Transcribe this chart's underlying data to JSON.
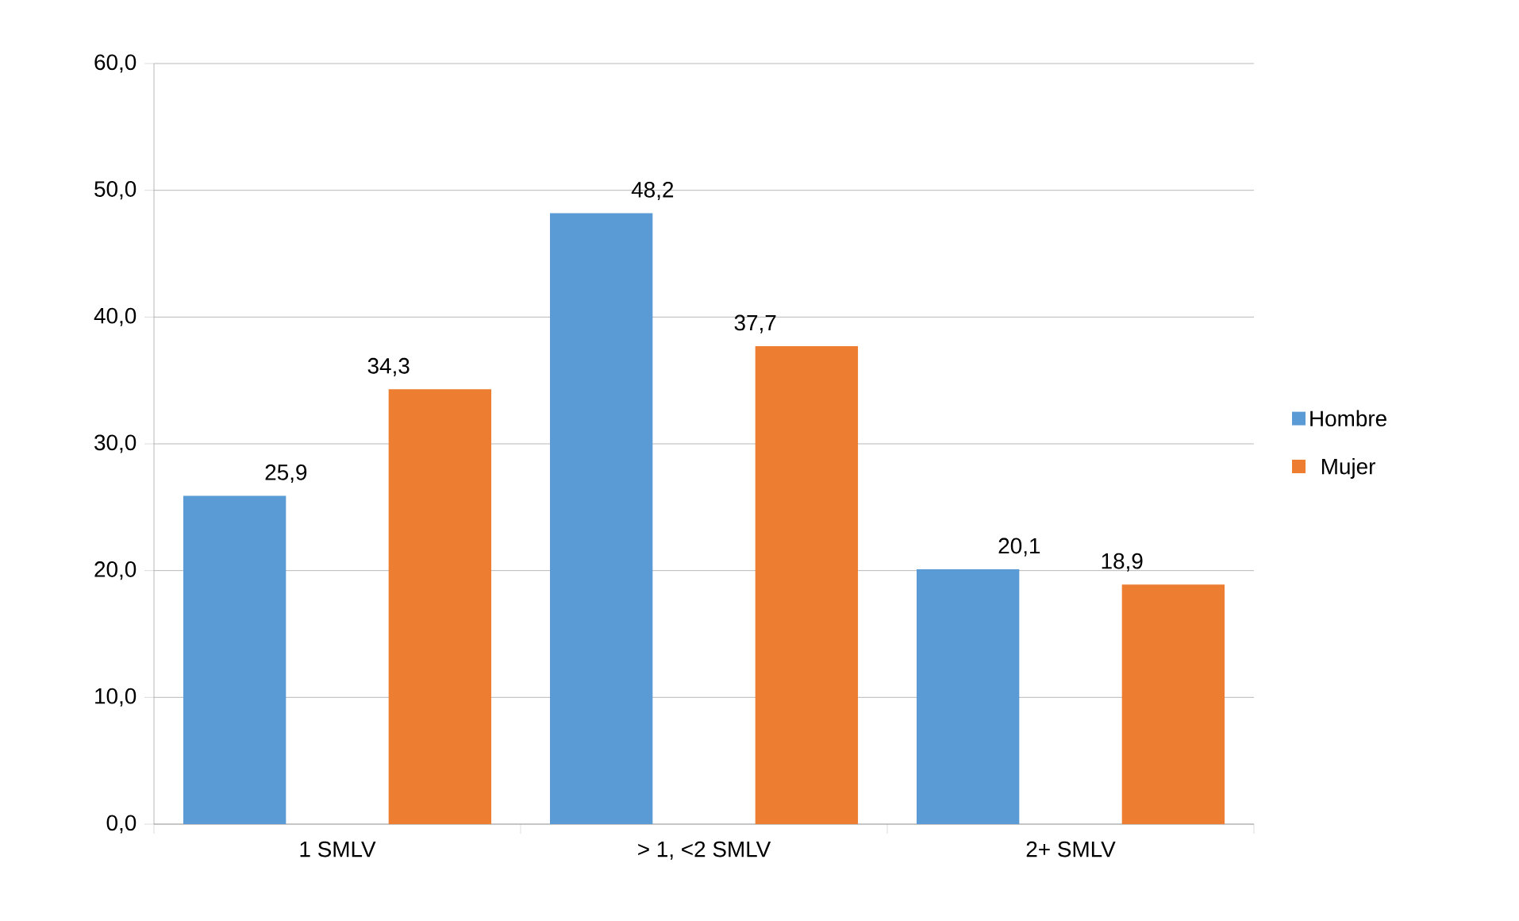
{
  "chart_data": {
    "type": "bar",
    "categories": [
      "1 SMLV",
      "> 1, <2 SMLV",
      "2+ SMLV"
    ],
    "series": [
      {
        "name": "Hombre",
        "color": "#5b9bd5",
        "values": [
          25.9,
          48.2,
          20.1
        ],
        "value_labels": [
          "25,9",
          "48,2",
          "20,1"
        ]
      },
      {
        "name": "Mujer",
        "color": "#ed7d31",
        "values": [
          34.3,
          37.7,
          18.9
        ],
        "value_labels": [
          "34,3",
          "37,7",
          "18,9"
        ]
      }
    ],
    "ylim": [
      0,
      60
    ],
    "yticks": [
      {
        "value": 0,
        "label": "0,0"
      },
      {
        "value": 10,
        "label": "10,0"
      },
      {
        "value": 20,
        "label": "20,0"
      },
      {
        "value": 30,
        "label": "30,0"
      },
      {
        "value": 40,
        "label": "40,0"
      },
      {
        "value": 50,
        "label": "50,0"
      },
      {
        "value": 60,
        "label": "60,0"
      }
    ],
    "grid": "y",
    "legend": "right"
  }
}
